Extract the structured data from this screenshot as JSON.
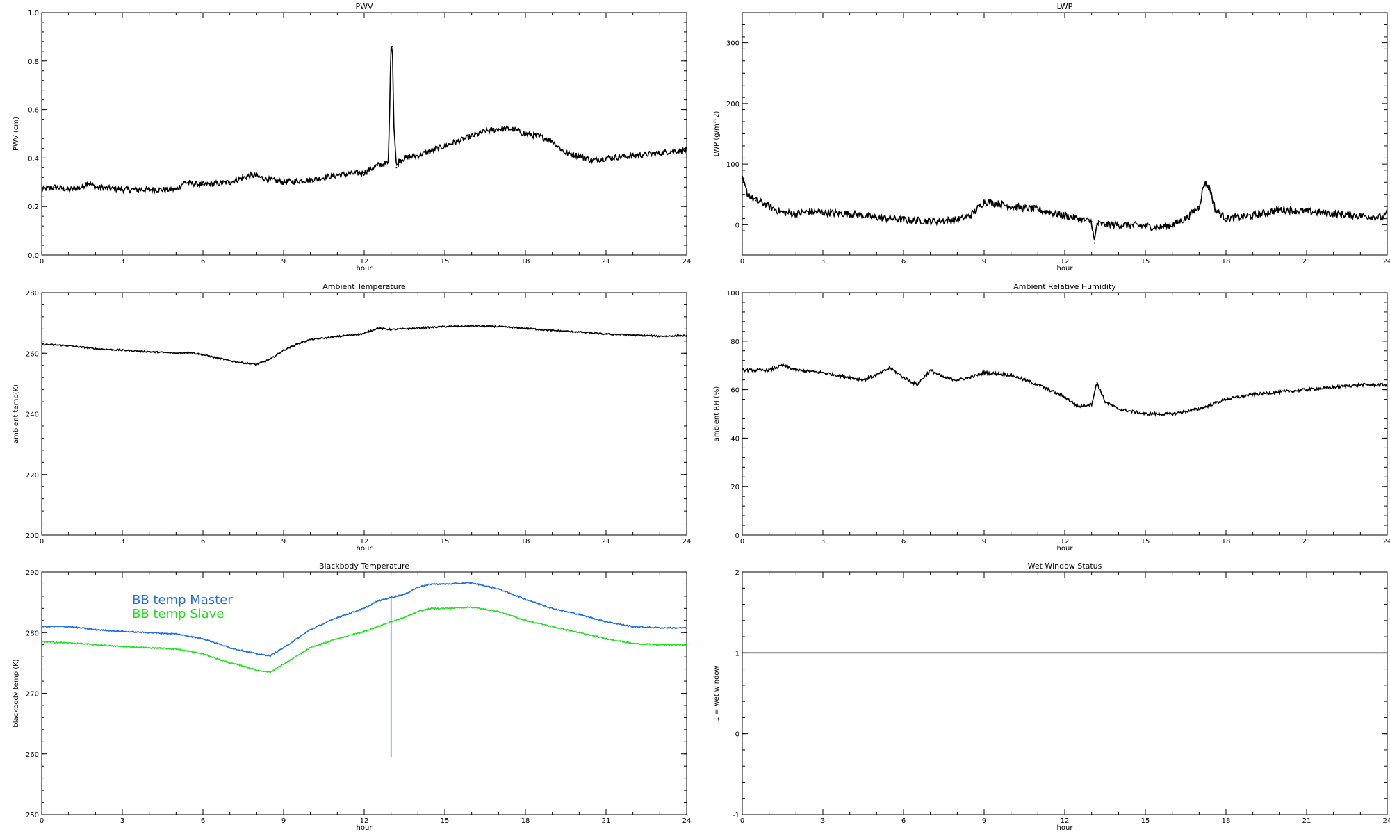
{
  "colors": {
    "axis": "#000000",
    "data": "#000000",
    "bb_master": "#1f6fe0",
    "bb_slave": "#22e022"
  },
  "chart_data": [
    {
      "id": "pwv",
      "type": "scatter",
      "title": "PWV",
      "xlabel": "hour",
      "ylabel": "PWV (cm)",
      "xlim": [
        0,
        24
      ],
      "ylim": [
        0.0,
        1.0
      ],
      "xticks": [
        "0",
        "3",
        "6",
        "9",
        "12",
        "15",
        "18",
        "21",
        "24"
      ],
      "yticks": [
        "0.0",
        "0.2",
        "0.4",
        "0.6",
        "0.8",
        "1.0"
      ],
      "series": [
        {
          "x": [
            0,
            0.5,
            1,
            1.5,
            1.7,
            2,
            3,
            4,
            5,
            5.3,
            6,
            7,
            7.8,
            8.5,
            9,
            10,
            11,
            12,
            12.5,
            12.9,
            13.0,
            13.05,
            13.1,
            13.2,
            13.3,
            13.5,
            14,
            15,
            16,
            16.5,
            17,
            17.5,
            18,
            18.5,
            19,
            19.5,
            20,
            20.5,
            21,
            22,
            23,
            23.5,
            24
          ],
          "y": [
            0.27,
            0.28,
            0.27,
            0.28,
            0.3,
            0.28,
            0.27,
            0.27,
            0.27,
            0.3,
            0.29,
            0.3,
            0.33,
            0.31,
            0.3,
            0.31,
            0.33,
            0.34,
            0.37,
            0.38,
            0.87,
            0.86,
            0.55,
            0.36,
            0.39,
            0.4,
            0.41,
            0.45,
            0.49,
            0.51,
            0.52,
            0.52,
            0.5,
            0.49,
            0.47,
            0.42,
            0.41,
            0.39,
            0.4,
            0.41,
            0.42,
            0.43,
            0.43
          ]
        }
      ]
    },
    {
      "id": "lwp",
      "type": "scatter",
      "title": "LWP",
      "xlabel": "hour",
      "ylabel": "LWP (g/m^2)",
      "xlim": [
        0,
        24
      ],
      "ylim": [
        -50,
        350
      ],
      "xticks": [
        "0",
        "3",
        "6",
        "9",
        "12",
        "15",
        "18",
        "21",
        "24"
      ],
      "yticks": [
        "0",
        "100",
        "200",
        "300"
      ],
      "series": [
        {
          "x": [
            0,
            0.2,
            0.5,
            0.8,
            1,
            1.5,
            2,
            2.5,
            3,
            4,
            5,
            6,
            7,
            8,
            8.5,
            9,
            9.5,
            10,
            11,
            12,
            12.5,
            13,
            13.1,
            13.2,
            13.5,
            14,
            15,
            15.5,
            16,
            16.5,
            17,
            17.2,
            17.4,
            17.6,
            18,
            19,
            20,
            21,
            22,
            23,
            23.8,
            24
          ],
          "y": [
            75,
            50,
            40,
            35,
            30,
            20,
            18,
            22,
            20,
            18,
            12,
            8,
            6,
            8,
            15,
            38,
            35,
            30,
            25,
            15,
            10,
            5,
            -30,
            2,
            0,
            0,
            -2,
            -5,
            0,
            10,
            30,
            70,
            60,
            25,
            10,
            15,
            25,
            22,
            18,
            15,
            12,
            18
          ]
        }
      ]
    },
    {
      "id": "ambient-temp",
      "type": "line",
      "title": "Ambient Temperature",
      "xlabel": "hour",
      "ylabel": "ambient temp(K)",
      "xlim": [
        0,
        24
      ],
      "ylim": [
        200,
        280
      ],
      "xticks": [
        "0",
        "3",
        "6",
        "9",
        "12",
        "15",
        "18",
        "21",
        "24"
      ],
      "yticks": [
        "200",
        "220",
        "240",
        "260",
        "280"
      ],
      "series": [
        {
          "x": [
            0,
            1,
            2,
            3,
            4,
            5,
            5.5,
            6,
            6.5,
            7,
            7.5,
            8,
            8.5,
            9,
            9.5,
            10,
            11,
            12,
            12.5,
            13,
            14,
            15,
            16,
            17,
            18,
            19,
            20,
            21,
            22,
            23,
            24
          ],
          "y": [
            263,
            262.5,
            261.5,
            261,
            260.5,
            260,
            260.3,
            259.5,
            258.5,
            257.5,
            256.8,
            256.3,
            258,
            261,
            263,
            264.5,
            265.5,
            266.5,
            268.3,
            267.8,
            268.3,
            268.8,
            269,
            268.8,
            268.2,
            267.5,
            267,
            266.3,
            266,
            265.6,
            265.8
          ]
        }
      ]
    },
    {
      "id": "ambient-rh",
      "type": "scatter",
      "title": "Ambient Relative Humidity",
      "xlabel": "hour",
      "ylabel": "ambient RH (%)",
      "xlim": [
        0,
        24
      ],
      "ylim": [
        0,
        100
      ],
      "xticks": [
        "0",
        "3",
        "6",
        "9",
        "12",
        "15",
        "18",
        "21",
        "24"
      ],
      "yticks": [
        "0",
        "20",
        "40",
        "60",
        "80",
        "100"
      ],
      "series": [
        {
          "x": [
            0,
            1,
            1.5,
            2,
            3,
            4,
            4.5,
            5,
            5.5,
            6,
            6.5,
            7,
            7.5,
            8,
            8.5,
            9,
            10,
            11,
            12,
            12.5,
            13,
            13.2,
            13.5,
            14,
            15,
            16,
            17,
            18,
            19,
            20,
            21,
            22,
            23,
            24
          ],
          "y": [
            68,
            68,
            70,
            68,
            67,
            65,
            64,
            66,
            69,
            65,
            62,
            68,
            65,
            64,
            65,
            67,
            66,
            62,
            57,
            53,
            54,
            63,
            55,
            52,
            50,
            50,
            52,
            56,
            58,
            59,
            60,
            61,
            62,
            62
          ]
        }
      ]
    },
    {
      "id": "blackbody-temp",
      "type": "line",
      "title": "Blackbody Temperature",
      "xlabel": "hour",
      "ylabel": "blackbody temp (K)",
      "xlim": [
        0,
        24
      ],
      "ylim": [
        250,
        290
      ],
      "xticks": [
        "0",
        "3",
        "6",
        "9",
        "12",
        "15",
        "18",
        "21",
        "24"
      ],
      "yticks": [
        "250",
        "260",
        "270",
        "280",
        "290"
      ],
      "legend": [
        "BB temp Master",
        "BB temp Slave"
      ],
      "legend_position": "top-left",
      "series": [
        {
          "name": "BB temp Master",
          "x": [
            0,
            1,
            2,
            3,
            4,
            5,
            6,
            7,
            7.5,
            8,
            8.5,
            9,
            10,
            11,
            12,
            12.5,
            13,
            13.5,
            14,
            14.5,
            15,
            16,
            17,
            18,
            19,
            20,
            21,
            22,
            23,
            24
          ],
          "y": [
            281,
            281,
            280.5,
            280.2,
            280,
            279.8,
            279,
            277.5,
            277,
            276.5,
            276.2,
            277.5,
            280.5,
            282.5,
            284,
            285.2,
            285.8,
            286.3,
            287.5,
            288,
            288,
            288.2,
            287.2,
            285.5,
            284,
            283,
            281.8,
            281,
            280.8,
            280.8
          ]
        },
        {
          "name": "BB temp Slave",
          "x": [
            0,
            1,
            2,
            3,
            4,
            5,
            6,
            7,
            7.5,
            8,
            8.5,
            9,
            10,
            11,
            12,
            12.5,
            13,
            13.5,
            14,
            14.5,
            15,
            16,
            17,
            18,
            19,
            20,
            21,
            22,
            23,
            24
          ],
          "y": [
            278.5,
            278.3,
            278,
            277.7,
            277.5,
            277.3,
            276.5,
            275,
            274.5,
            273.8,
            273.5,
            274.8,
            277.5,
            279,
            280.2,
            281,
            281.8,
            282.5,
            283.5,
            284,
            284,
            284.2,
            283.5,
            282,
            281,
            280,
            279,
            278.2,
            278,
            278
          ]
        }
      ],
      "spike": {
        "x": 13.0,
        "y_from": 259.5,
        "y_to": 286
      }
    },
    {
      "id": "wet-window",
      "type": "line",
      "title": "Wet Window Status",
      "xlabel": "hour",
      "ylabel": "1 = wet window",
      "xlim": [
        0,
        24
      ],
      "ylim": [
        -1,
        2
      ],
      "xticks": [
        "0",
        "3",
        "6",
        "9",
        "12",
        "15",
        "18",
        "21",
        "24"
      ],
      "yticks": [
        "-1",
        "0",
        "1",
        "2"
      ],
      "series": [
        {
          "x": [
            0,
            24
          ],
          "y": [
            1,
            1
          ]
        }
      ]
    }
  ]
}
